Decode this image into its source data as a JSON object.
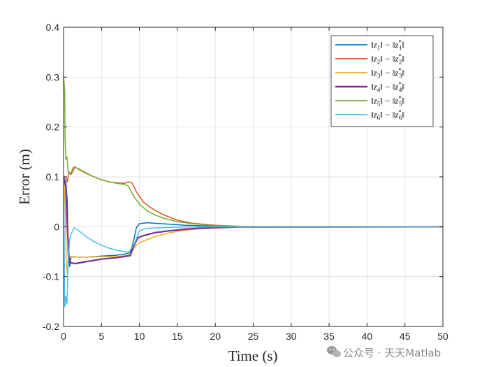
{
  "chart_data": {
    "type": "line",
    "title": "",
    "xlabel": "Time (s)",
    "ylabel": "Error (m)",
    "xlim": [
      0,
      50
    ],
    "ylim": [
      -0.2,
      0.4
    ],
    "xticks": [
      0,
      5,
      10,
      15,
      20,
      25,
      30,
      35,
      40,
      45,
      50
    ],
    "yticks": [
      -0.2,
      -0.1,
      0,
      0.1,
      0.2,
      0.3,
      0.4
    ],
    "xtick_labels": [
      "0",
      "5",
      "10",
      "15",
      "20",
      "25",
      "30",
      "35",
      "40",
      "45",
      "50"
    ],
    "ytick_labels": [
      "-0.2",
      "-0.1",
      "0",
      "0.1",
      "0.2",
      "0.3",
      "0.4"
    ],
    "grid": true,
    "legend_position": "top-right",
    "series": [
      {
        "name": "||z1|| − ||z1*||",
        "sub": "1",
        "color": "#0072BD",
        "points": [
          [
            0,
            0.1
          ],
          [
            0.3,
            0.09
          ],
          [
            0.5,
            0.05
          ],
          [
            0.6,
            -0.06
          ],
          [
            0.8,
            -0.08
          ],
          [
            1,
            -0.06
          ],
          [
            2,
            -0.061
          ],
          [
            3,
            -0.061
          ],
          [
            4,
            -0.06
          ],
          [
            5,
            -0.059
          ],
          [
            6,
            -0.058
          ],
          [
            7,
            -0.057
          ],
          [
            8,
            -0.055
          ],
          [
            8.8,
            -0.052
          ],
          [
            9.2,
            -0.03
          ],
          [
            9.6,
            -0.002
          ],
          [
            10,
            0.006
          ],
          [
            11,
            0.008
          ],
          [
            12,
            0.007
          ],
          [
            14,
            0.005
          ],
          [
            16,
            0.003
          ],
          [
            18,
            0.002
          ],
          [
            20,
            0.001
          ],
          [
            23,
            0.0003
          ],
          [
            50,
            0
          ]
        ]
      },
      {
        "name": "||z2|| − ||z2*||",
        "sub": "2",
        "color": "#D95319",
        "points": [
          [
            0,
            0.1
          ],
          [
            0.3,
            0.1
          ],
          [
            0.5,
            0.09
          ],
          [
            0.7,
            0.11
          ],
          [
            1,
            0.105
          ],
          [
            1.5,
            0.12
          ],
          [
            2,
            0.115
          ],
          [
            3,
            0.107
          ],
          [
            4,
            0.1
          ],
          [
            5,
            0.094
          ],
          [
            6,
            0.09
          ],
          [
            7,
            0.088
          ],
          [
            8,
            0.087
          ],
          [
            8.6,
            0.09
          ],
          [
            9,
            0.088
          ],
          [
            9.6,
            0.07
          ],
          [
            10.5,
            0.05
          ],
          [
            11.5,
            0.038
          ],
          [
            13,
            0.025
          ],
          [
            15,
            0.013
          ],
          [
            17,
            0.007
          ],
          [
            20,
            0.003
          ],
          [
            23,
            0.001
          ],
          [
            25,
            0
          ],
          [
            50,
            0
          ]
        ]
      },
      {
        "name": "||z3|| − ||z3*||",
        "sub": "3",
        "color": "#EDB120",
        "points": [
          [
            0,
            0.1
          ],
          [
            0.2,
            0.05
          ],
          [
            0.35,
            -0.07
          ],
          [
            0.5,
            -0.095
          ],
          [
            0.65,
            -0.055
          ],
          [
            0.8,
            -0.06
          ],
          [
            1.5,
            -0.061
          ],
          [
            3,
            -0.061
          ],
          [
            5,
            -0.06
          ],
          [
            7,
            -0.06
          ],
          [
            8.5,
            -0.057
          ],
          [
            9,
            -0.05
          ],
          [
            9.5,
            -0.038
          ],
          [
            10,
            -0.032
          ],
          [
            11,
            -0.026
          ],
          [
            12,
            -0.02
          ],
          [
            14,
            -0.012
          ],
          [
            16,
            -0.007
          ],
          [
            18,
            -0.004
          ],
          [
            20,
            -0.002
          ],
          [
            23,
            -0.0005
          ],
          [
            50,
            0
          ]
        ]
      },
      {
        "name": "||z4|| − ||z4*||",
        "sub": "4",
        "color": "#7E2F8E",
        "points": [
          [
            0,
            0.1
          ],
          [
            0.3,
            0.08
          ],
          [
            0.5,
            0
          ],
          [
            0.7,
            -0.06
          ],
          [
            0.9,
            -0.072
          ],
          [
            1.5,
            -0.074
          ],
          [
            3,
            -0.07
          ],
          [
            5,
            -0.065
          ],
          [
            7,
            -0.062
          ],
          [
            8.8,
            -0.058
          ],
          [
            9.2,
            -0.04
          ],
          [
            9.8,
            -0.022
          ],
          [
            10.5,
            -0.018
          ],
          [
            12,
            -0.012
          ],
          [
            14,
            -0.008
          ],
          [
            16,
            -0.005
          ],
          [
            18,
            -0.003
          ],
          [
            20,
            -0.002
          ],
          [
            23,
            -0.0005
          ],
          [
            50,
            0
          ]
        ]
      },
      {
        "name": "||z5|| − ||z5*||",
        "sub": "5",
        "color": "#77AC30",
        "points": [
          [
            0,
            0.305
          ],
          [
            0.15,
            0.27
          ],
          [
            0.2,
            0.18
          ],
          [
            0.3,
            0.135
          ],
          [
            0.45,
            0.14
          ],
          [
            0.6,
            0.11
          ],
          [
            0.9,
            0.105
          ],
          [
            1.3,
            0.12
          ],
          [
            2,
            0.116
          ],
          [
            3,
            0.108
          ],
          [
            4,
            0.1
          ],
          [
            5,
            0.094
          ],
          [
            6,
            0.09
          ],
          [
            7,
            0.087
          ],
          [
            8,
            0.085
          ],
          [
            8.5,
            0.082
          ],
          [
            9.3,
            0.06
          ],
          [
            10,
            0.045
          ],
          [
            11,
            0.032
          ],
          [
            12,
            0.024
          ],
          [
            13,
            0.018
          ],
          [
            15,
            0.01
          ],
          [
            17,
            0.006
          ],
          [
            20,
            0.002
          ],
          [
            23,
            0.0005
          ],
          [
            50,
            0
          ]
        ]
      },
      {
        "name": "||z6|| − ||z6*||",
        "sub": "6",
        "color": "#4DBEEE",
        "points": [
          [
            0,
            0.1
          ],
          [
            0.15,
            -0.16
          ],
          [
            0.3,
            -0.14
          ],
          [
            0.45,
            -0.155
          ],
          [
            0.6,
            -0.07
          ],
          [
            0.8,
            -0.025
          ],
          [
            1,
            -0.015
          ],
          [
            1.4,
            -0.002
          ],
          [
            2,
            -0.008
          ],
          [
            3,
            -0.02
          ],
          [
            4,
            -0.03
          ],
          [
            5,
            -0.037
          ],
          [
            6,
            -0.043
          ],
          [
            7,
            -0.047
          ],
          [
            8,
            -0.05
          ],
          [
            8.6,
            -0.051
          ],
          [
            9.3,
            -0.035
          ],
          [
            10,
            -0.008
          ],
          [
            11,
            -0.003
          ],
          [
            13,
            -0.002
          ],
          [
            15,
            -0.001
          ],
          [
            20,
            -0.0002
          ],
          [
            50,
            0
          ]
        ]
      }
    ]
  },
  "watermark": {
    "icon": "wechat-icon",
    "text": "公众号 · 天天Matlab"
  }
}
